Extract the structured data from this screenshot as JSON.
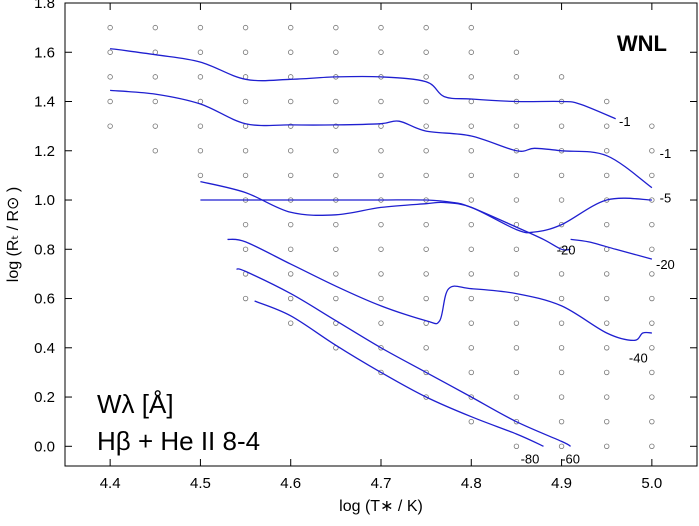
{
  "chart_data": {
    "type": "line",
    "title": "WNL",
    "xlabel": "log (T∗ / K)",
    "ylabel": "log (Rₜ / R⊙ )",
    "xlim": [
      4.35,
      5.05
    ],
    "ylim": [
      -0.08,
      1.8
    ],
    "xticks": [
      4.4,
      4.5,
      4.6,
      4.7,
      4.8,
      4.9,
      5.0
    ],
    "xtick_labels": [
      "4.4",
      "4.5",
      "4.6",
      "4.7",
      "4.8",
      "4.9",
      "5.0"
    ],
    "yticks": [
      0.0,
      0.2,
      0.4,
      0.6,
      0.8,
      1.0,
      1.2,
      1.4,
      1.6,
      1.8
    ],
    "ytick_labels": [
      "0.0",
      "0.2",
      "0.4",
      "0.6",
      "0.8",
      "1.0",
      "1.2",
      "1.4",
      "1.6",
      "1.8"
    ],
    "annotation_line1": "Wλ  [Å]",
    "annotation_line2": "Hβ + He II 8-4",
    "grid_points": [
      {
        "x": 4.4,
        "y": [
          1.3,
          1.4,
          1.5,
          1.6,
          1.7
        ]
      },
      {
        "x": 4.45,
        "y": [
          1.2,
          1.3,
          1.4,
          1.5,
          1.6,
          1.7
        ]
      },
      {
        "x": 4.5,
        "y": [
          1.1,
          1.2,
          1.3,
          1.4,
          1.5,
          1.6,
          1.7
        ]
      },
      {
        "x": 4.55,
        "y": [
          0.6,
          0.7,
          0.8,
          0.9,
          1.0,
          1.1,
          1.2,
          1.3,
          1.4,
          1.5,
          1.6,
          1.7
        ]
      },
      {
        "x": 4.6,
        "y": [
          0.5,
          0.6,
          0.7,
          0.8,
          0.9,
          1.0,
          1.1,
          1.2,
          1.3,
          1.4,
          1.5,
          1.6,
          1.7
        ]
      },
      {
        "x": 4.65,
        "y": [
          0.4,
          0.5,
          0.6,
          0.7,
          0.8,
          0.9,
          1.0,
          1.1,
          1.2,
          1.3,
          1.4,
          1.5,
          1.6,
          1.7
        ]
      },
      {
        "x": 4.7,
        "y": [
          0.3,
          0.4,
          0.5,
          0.6,
          0.7,
          0.8,
          0.9,
          1.0,
          1.1,
          1.2,
          1.3,
          1.4,
          1.5,
          1.6,
          1.7
        ]
      },
      {
        "x": 4.75,
        "y": [
          0.2,
          0.3,
          0.4,
          0.5,
          0.6,
          0.7,
          0.8,
          0.9,
          1.0,
          1.1,
          1.2,
          1.3,
          1.4,
          1.5,
          1.6,
          1.7
        ]
      },
      {
        "x": 4.8,
        "y": [
          0.1,
          0.2,
          0.3,
          0.4,
          0.5,
          0.6,
          0.7,
          0.8,
          0.9,
          1.0,
          1.1,
          1.2,
          1.3,
          1.4,
          1.5,
          1.6,
          1.7
        ]
      },
      {
        "x": 4.85,
        "y": [
          0.0,
          0.1,
          0.2,
          0.3,
          0.4,
          0.5,
          0.6,
          0.7,
          0.8,
          0.9,
          1.0,
          1.1,
          1.2,
          1.3,
          1.4,
          1.5,
          1.6
        ]
      },
      {
        "x": 4.9,
        "y": [
          0.0,
          0.1,
          0.2,
          0.3,
          0.4,
          0.5,
          0.6,
          0.7,
          0.8,
          0.9,
          1.0,
          1.1,
          1.2,
          1.3,
          1.4,
          1.5
        ]
      },
      {
        "x": 4.95,
        "y": [
          0.0,
          0.1,
          0.2,
          0.3,
          0.4,
          0.5,
          0.6,
          0.7,
          0.8,
          0.9,
          1.0,
          1.1,
          1.2,
          1.3,
          1.4
        ]
      },
      {
        "x": 5.0,
        "y": [
          0.0,
          0.1,
          0.2,
          0.3,
          0.4,
          0.5,
          0.6,
          0.7,
          0.8,
          0.9,
          1.0,
          1.1,
          1.2,
          1.3
        ]
      }
    ],
    "series": [
      {
        "label": "-1",
        "label_x": 4.97,
        "label_y": 1.32,
        "x": [
          4.4,
          4.45,
          4.5,
          4.55,
          4.6,
          4.65,
          4.7,
          4.75,
          4.77,
          4.8,
          4.85,
          4.9,
          4.92,
          4.96
        ],
        "y": [
          1.615,
          1.59,
          1.56,
          1.49,
          1.49,
          1.5,
          1.5,
          1.48,
          1.42,
          1.41,
          1.4,
          1.4,
          1.39,
          1.33
        ]
      },
      {
        "label": "-1",
        "label_x": 5.015,
        "label_y": 1.19,
        "x": [
          4.4,
          4.45,
          4.5,
          4.55,
          4.6,
          4.65,
          4.7,
          4.72,
          4.75,
          4.8,
          4.85,
          4.87,
          4.9,
          4.95,
          5.0
        ],
        "y": [
          1.445,
          1.43,
          1.39,
          1.31,
          1.305,
          1.305,
          1.31,
          1.32,
          1.28,
          1.26,
          1.2,
          1.21,
          1.2,
          1.18,
          1.05
        ]
      },
      {
        "label": "-5",
        "label_x": 5.015,
        "label_y": 1.01,
        "x": [
          4.5,
          4.55,
          4.6,
          4.65,
          4.7,
          4.75,
          4.77,
          4.8,
          4.85,
          4.87,
          4.9,
          4.95,
          5.0
        ],
        "y": [
          1.075,
          1.03,
          0.95,
          0.94,
          0.97,
          0.985,
          0.99,
          0.97,
          0.88,
          0.87,
          0.9,
          1.0,
          1.0
        ]
      },
      {
        "label": "-20",
        "label_x": 4.905,
        "label_y": 0.8,
        "x": [
          4.5,
          4.55,
          4.6,
          4.65,
          4.7,
          4.75,
          4.78,
          4.8,
          4.85,
          4.88,
          4.9,
          4.91
        ],
        "y": [
          1.0,
          1.0,
          1.0,
          1.0,
          1.0,
          1.0,
          0.99,
          0.97,
          0.89,
          0.84,
          0.8,
          0.8
        ]
      },
      {
        "label": "-20",
        "label_x": 5.015,
        "label_y": 0.74,
        "x": [
          4.91,
          4.93,
          4.96,
          5.0
        ],
        "y": [
          0.84,
          0.83,
          0.8,
          0.76
        ]
      },
      {
        "label": "-40",
        "label_x": 4.985,
        "label_y": 0.36,
        "x": [
          4.53,
          4.55,
          4.6,
          4.65,
          4.7,
          4.75,
          4.765,
          4.775,
          4.8,
          4.85,
          4.9,
          4.95,
          4.98,
          4.99,
          5.0
        ],
        "y": [
          0.84,
          0.83,
          0.74,
          0.65,
          0.57,
          0.51,
          0.51,
          0.64,
          0.64,
          0.62,
          0.57,
          0.46,
          0.43,
          0.46,
          0.46
        ]
      },
      {
        "label": "-60",
        "label_x": 4.91,
        "label_y": -0.05,
        "x": [
          4.54,
          4.55,
          4.6,
          4.65,
          4.7,
          4.75,
          4.8,
          4.85,
          4.9,
          4.91
        ],
        "y": [
          0.72,
          0.71,
          0.62,
          0.51,
          0.4,
          0.3,
          0.2,
          0.1,
          0.02,
          0.0
        ]
      },
      {
        "label": "-80",
        "label_x": 4.865,
        "label_y": -0.05,
        "x": [
          4.56,
          4.6,
          4.65,
          4.7,
          4.75,
          4.8,
          4.85,
          4.88
        ],
        "y": [
          0.59,
          0.53,
          0.41,
          0.3,
          0.2,
          0.12,
          0.05,
          0.0
        ]
      }
    ]
  }
}
